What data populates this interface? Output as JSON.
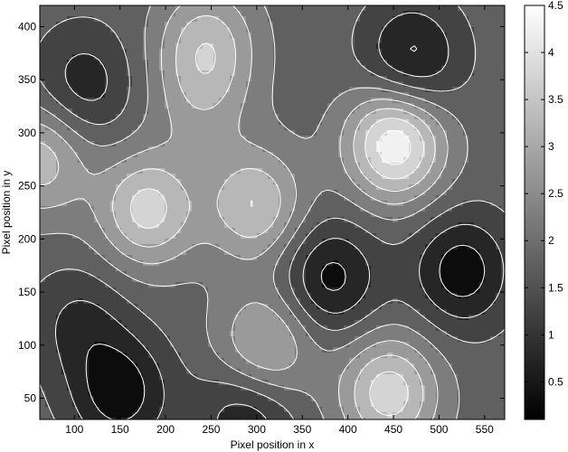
{
  "chart_data": {
    "type": "heatmap",
    "subtype": "filled-contour",
    "colormap": "gray",
    "colormap_endpoints": [
      "#000000",
      "#ffffff"
    ],
    "contour_line_color": "#ffffff",
    "title": "",
    "xlabel": "Pixel position in x",
    "ylabel": "Pixel position in y",
    "xlim": [
      62,
      572
    ],
    "ylim": [
      30,
      420
    ],
    "xticks": [
      100,
      150,
      200,
      250,
      300,
      350,
      400,
      450,
      500,
      550
    ],
    "yticks": [
      50,
      100,
      150,
      200,
      250,
      300,
      350,
      400
    ],
    "colorbar": {
      "range": [
        0.1,
        4.5
      ],
      "ticks": [
        0.5,
        1,
        1.5,
        2,
        2.5,
        3,
        3.5,
        4,
        4.5
      ]
    },
    "contour_levels": [
      0.5,
      1,
      1.5,
      2,
      2.5,
      3,
      3.5,
      4
    ],
    "base_level": 1.75,
    "features": [
      {
        "name": "peak-upper-right",
        "x": 452,
        "y": 290,
        "value": 4.4
      },
      {
        "name": "peak-left",
        "x": 180,
        "y": 228,
        "value": 3.7
      },
      {
        "name": "peak-center",
        "x": 298,
        "y": 232,
        "value": 3.5
      },
      {
        "name": "peak-lower-center",
        "x": 310,
        "y": 98,
        "value": 3.3
      },
      {
        "name": "peak-lower-right",
        "x": 445,
        "y": 55,
        "value": 3.8
      },
      {
        "name": "peak-left-edge",
        "x": 62,
        "y": 275,
        "value": 3.3
      },
      {
        "name": "peak-top-center",
        "x": 245,
        "y": 385,
        "value": 3.2
      },
      {
        "name": "ridge-upper-center",
        "x": 240,
        "y": 330,
        "value": 2.6
      },
      {
        "name": "valley-top-left",
        "x": 110,
        "y": 345,
        "value": 0.7
      },
      {
        "name": "valley-top-right",
        "x": 470,
        "y": 370,
        "value": 0.3
      },
      {
        "name": "valley-mid",
        "x": 380,
        "y": 163,
        "value": 0.3
      },
      {
        "name": "valley-right",
        "x": 525,
        "y": 170,
        "value": 0.2
      },
      {
        "name": "valley-bottom-left",
        "x": 150,
        "y": 55,
        "value": 0.2
      },
      {
        "name": "valley-bottom-center",
        "x": 290,
        "y": 35,
        "value": 0.5
      },
      {
        "name": "valley-lower-left",
        "x": 105,
        "y": 120,
        "value": 0.9
      }
    ]
  }
}
